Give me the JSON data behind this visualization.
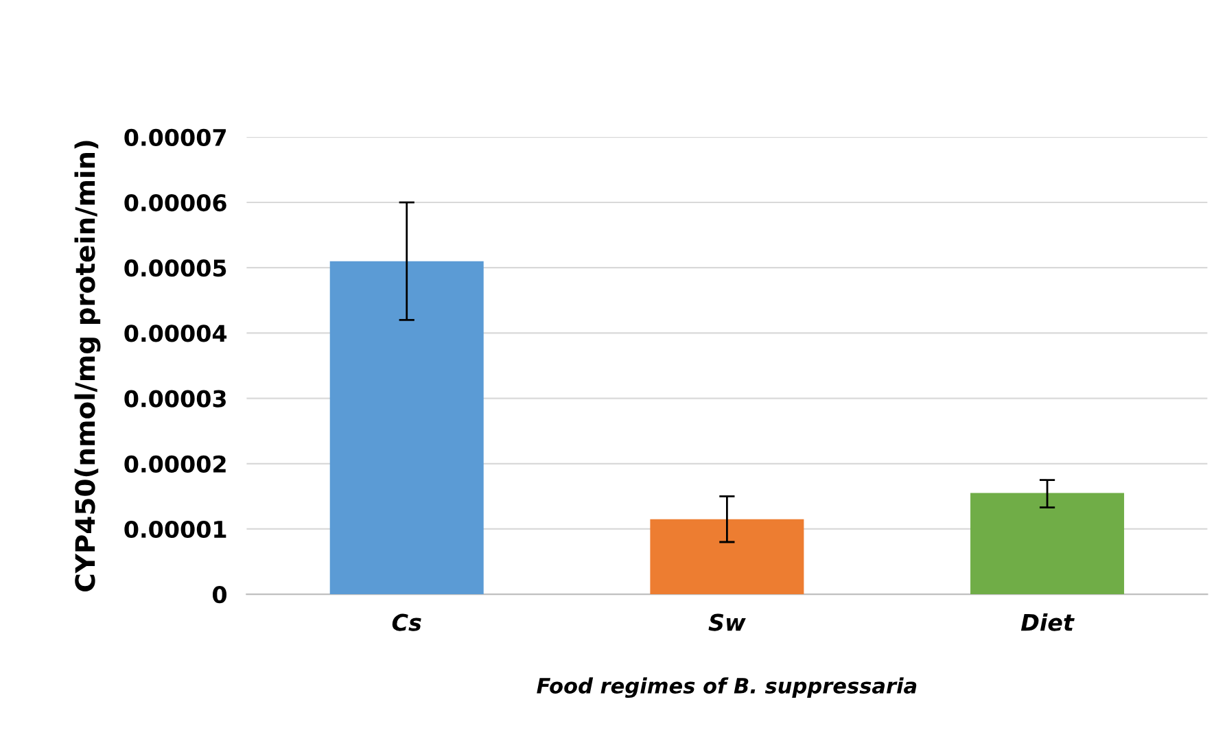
{
  "chart_data": {
    "type": "bar",
    "xlabel": "Food regimes of B. suppressaria",
    "ylabel": "CYP450(nmol/mg protein/min)",
    "categories": [
      "Cs",
      "Sw",
      "Diet"
    ],
    "values": [
      5.1e-05,
      1.15e-05,
      1.55e-05
    ],
    "colors": [
      "#5b9bd5",
      "#ed7d31",
      "#70ad47"
    ],
    "errors": [
      [
        4.2e-05,
        6e-05
      ],
      [
        8e-06,
        1.5e-05
      ],
      [
        1.33e-05,
        1.75e-05
      ]
    ],
    "ylim": [
      0,
      7e-05
    ],
    "yticks": [
      {
        "value": 0,
        "label": "0"
      },
      {
        "value": 1e-05,
        "label": "0.00001"
      },
      {
        "value": 2e-05,
        "label": "0.00002"
      },
      {
        "value": 3e-05,
        "label": "0.00003"
      },
      {
        "value": 4e-05,
        "label": "0.00004"
      },
      {
        "value": 5e-05,
        "label": "0.00005"
      },
      {
        "value": 6e-05,
        "label": "0.00006"
      },
      {
        "value": 7e-05,
        "label": "0.00007"
      }
    ],
    "grid": "y"
  }
}
